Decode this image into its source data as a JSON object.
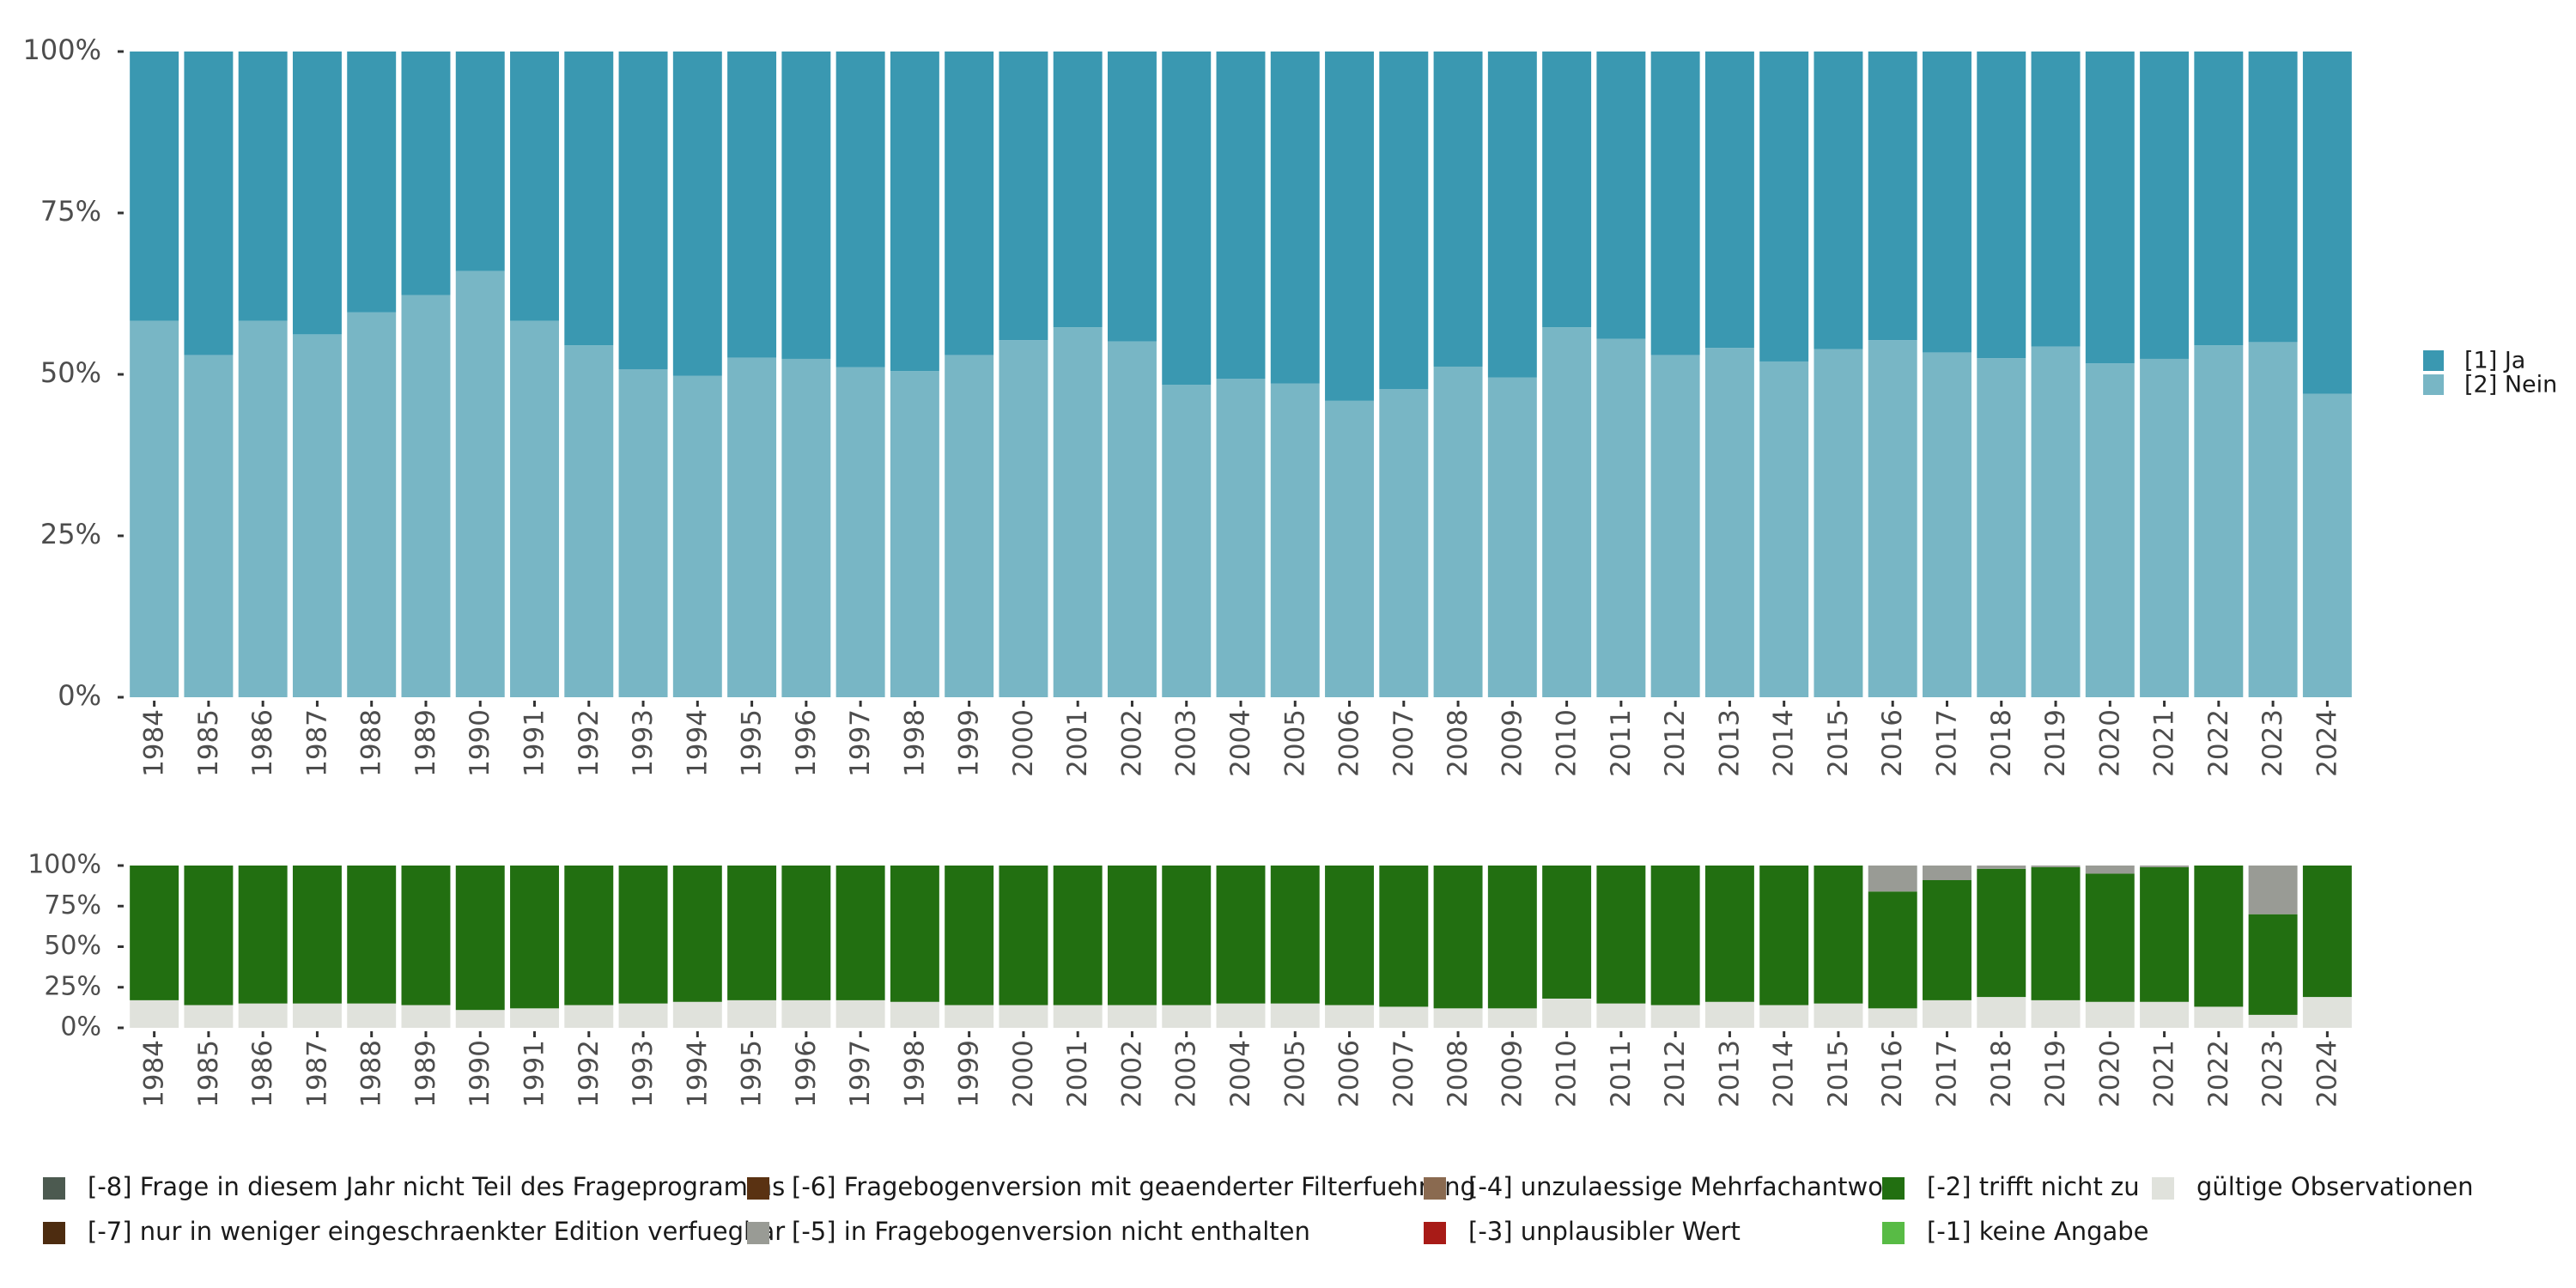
{
  "chart_data": [
    {
      "type": "bar",
      "stacked": true,
      "normalized": true,
      "title": "",
      "xlabel": "",
      "ylabel": "",
      "ylim": [
        0,
        1
      ],
      "y_ticks": [
        "0%",
        "25%",
        "50%",
        "75%",
        "100%"
      ],
      "categories": [
        "1984",
        "1985",
        "1986",
        "1987",
        "1988",
        "1989",
        "1990",
        "1991",
        "1992",
        "1993",
        "1994",
        "1995",
        "1996",
        "1997",
        "1998",
        "1999",
        "2000",
        "2001",
        "2002",
        "2003",
        "2004",
        "2005",
        "2006",
        "2007",
        "2008",
        "2009",
        "2010",
        "2011",
        "2012",
        "2013",
        "2014",
        "2015",
        "2016",
        "2017",
        "2018",
        "2019",
        "2020",
        "2021",
        "2022",
        "2023",
        "2024"
      ],
      "series": [
        {
          "name": "[2] Nein",
          "color": "#78b6c5",
          "values": [
            0.583,
            0.53,
            0.583,
            0.562,
            0.596,
            0.623,
            0.66,
            0.583,
            0.545,
            0.508,
            0.498,
            0.526,
            0.524,
            0.511,
            0.505,
            0.53,
            0.553,
            0.573,
            0.551,
            0.484,
            0.493,
            0.486,
            0.459,
            0.477,
            0.512,
            0.495,
            0.573,
            0.555,
            0.53,
            0.541,
            0.52,
            0.539,
            0.553,
            0.534,
            0.525,
            0.543,
            0.517,
            0.524,
            0.545,
            0.55,
            0.47
          ]
        },
        {
          "name": "[1] Ja",
          "color": "#3a98b1",
          "values": [
            0.417,
            0.47,
            0.417,
            0.438,
            0.404,
            0.377,
            0.34,
            0.417,
            0.455,
            0.492,
            0.502,
            0.474,
            0.476,
            0.489,
            0.495,
            0.47,
            0.447,
            0.427,
            0.449,
            0.516,
            0.507,
            0.514,
            0.541,
            0.523,
            0.488,
            0.505,
            0.427,
            0.445,
            0.47,
            0.459,
            0.48,
            0.461,
            0.447,
            0.466,
            0.475,
            0.457,
            0.483,
            0.476,
            0.455,
            0.45,
            0.53
          ]
        }
      ],
      "legend": {
        "position": "right",
        "entries": [
          "[1] Ja",
          "[2] Nein"
        ]
      }
    },
    {
      "type": "bar",
      "stacked": true,
      "normalized": true,
      "title": "",
      "xlabel": "",
      "ylabel": "",
      "ylim": [
        0,
        1
      ],
      "y_ticks": [
        "0%",
        "25%",
        "50%",
        "75%",
        "100%"
      ],
      "categories": [
        "1984",
        "1985",
        "1986",
        "1987",
        "1988",
        "1989",
        "1990",
        "1991",
        "1992",
        "1993",
        "1994",
        "1995",
        "1996",
        "1997",
        "1998",
        "1999",
        "2000",
        "2001",
        "2002",
        "2003",
        "2004",
        "2005",
        "2006",
        "2007",
        "2008",
        "2009",
        "2010",
        "2011",
        "2012",
        "2013",
        "2014",
        "2015",
        "2016",
        "2017",
        "2018",
        "2019",
        "2020",
        "2021",
        "2022",
        "2023",
        "2024"
      ],
      "series": [
        {
          "name": "gültige Observationen",
          "color": "#e0e2dc",
          "values": [
            0.17,
            0.14,
            0.15,
            0.15,
            0.15,
            0.14,
            0.11,
            0.12,
            0.14,
            0.15,
            0.16,
            0.17,
            0.17,
            0.17,
            0.16,
            0.14,
            0.14,
            0.14,
            0.14,
            0.14,
            0.15,
            0.15,
            0.14,
            0.13,
            0.12,
            0.12,
            0.18,
            0.15,
            0.14,
            0.16,
            0.14,
            0.15,
            0.12,
            0.17,
            0.19,
            0.17,
            0.16,
            0.16,
            0.13,
            0.08,
            0.19
          ]
        },
        {
          "name": "[-2] trifft nicht zu",
          "color": "#226f11",
          "values": [
            0.83,
            0.86,
            0.85,
            0.85,
            0.85,
            0.86,
            0.89,
            0.88,
            0.86,
            0.85,
            0.84,
            0.83,
            0.83,
            0.83,
            0.84,
            0.86,
            0.86,
            0.86,
            0.86,
            0.86,
            0.85,
            0.85,
            0.86,
            0.87,
            0.88,
            0.88,
            0.82,
            0.85,
            0.86,
            0.84,
            0.86,
            0.85,
            0.72,
            0.74,
            0.79,
            0.82,
            0.79,
            0.83,
            0.87,
            0.62,
            0.81
          ]
        },
        {
          "name": "[-5] in Fragebogenversion nicht enthalten",
          "color": "#999b95",
          "values": [
            0,
            0,
            0,
            0,
            0,
            0,
            0,
            0,
            0,
            0,
            0,
            0,
            0,
            0,
            0,
            0,
            0,
            0,
            0,
            0,
            0,
            0,
            0,
            0,
            0,
            0,
            0,
            0,
            0,
            0,
            0,
            0,
            0.16,
            0.09,
            0.02,
            0.01,
            0.05,
            0.01,
            0,
            0.3,
            0
          ]
        }
      ],
      "legend": {
        "position": "bottom",
        "entries": [
          {
            "label": "[-8] Frage in diesem Jahr nicht Teil des Frageprogramms",
            "color": "#4c5a50"
          },
          {
            "label": "[-7] nur in weniger eingeschraenkter Edition verfuegbar",
            "color": "#4d2c10"
          },
          {
            "label": "[-6] Fragebogenversion mit geaenderter Filterfuehrung",
            "color": "#5a3212"
          },
          {
            "label": "[-5] in Fragebogenversion nicht enthalten",
            "color": "#999b95"
          },
          {
            "label": "[-4] unzulaessige Mehrfachantwort",
            "color": "#8a6a50"
          },
          {
            "label": "[-3] unplausibler Wert",
            "color": "#a81b17"
          },
          {
            "label": "[-2] trifft nicht zu",
            "color": "#226f11"
          },
          {
            "label": "[-1] keine Angabe",
            "color": "#58bb45"
          },
          {
            "label": "gültige Observationen",
            "color": "#e0e2dc"
          }
        ]
      }
    }
  ]
}
